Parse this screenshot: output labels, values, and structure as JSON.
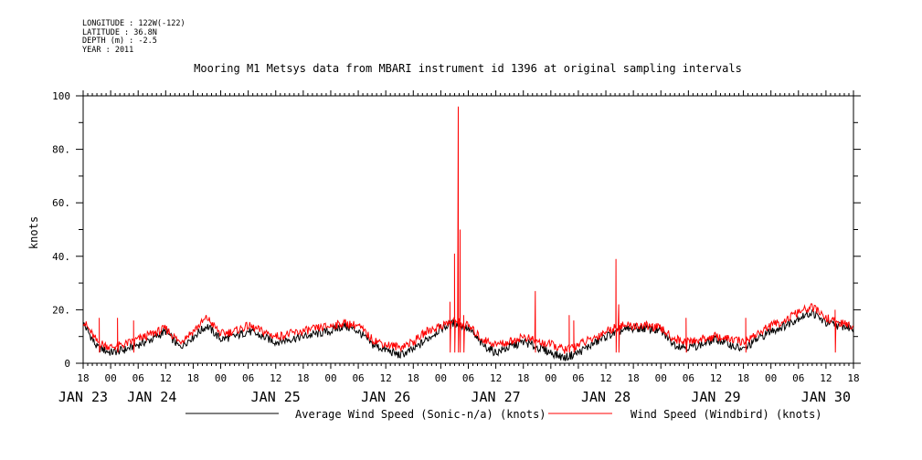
{
  "header": {
    "longitude": "LONGITUDE : 122W(-122)",
    "latitude": "LATITUDE : 36.8N",
    "depth": "DEPTH (m) : -2.5",
    "year": "YEAR : 2011"
  },
  "chart_data": {
    "type": "line",
    "title": "Mooring M1 Metsys data from MBARI instrument id 1396 at original sampling intervals",
    "ylabel": "knots",
    "xlabel": "",
    "ylim": [
      0,
      100
    ],
    "xlim_hours": [
      0,
      168
    ],
    "y_ticks": [
      "0",
      "20.",
      "40.",
      "60.",
      "80.",
      "100"
    ],
    "x_hour_ticks": [
      "18",
      "00",
      "06",
      "12",
      "18",
      "00",
      "06",
      "12",
      "18",
      "00",
      "06",
      "12",
      "18",
      "00",
      "06",
      "12",
      "18",
      "00",
      "06",
      "12",
      "18",
      "00",
      "06",
      "12",
      "18",
      "00",
      "06",
      "12",
      "18"
    ],
    "x_day_labels": [
      {
        "label": "JAN 23",
        "hour": 0
      },
      {
        "label": "JAN 24",
        "hour": 15
      },
      {
        "label": "JAN 25",
        "hour": 42
      },
      {
        "label": "JAN 26",
        "hour": 66
      },
      {
        "label": "JAN 27",
        "hour": 90
      },
      {
        "label": "JAN 28",
        "hour": 114
      },
      {
        "label": "JAN 29",
        "hour": 138
      },
      {
        "label": "JAN 30",
        "hour": 162
      }
    ],
    "grid": false,
    "legend_position": "bottom",
    "series": [
      {
        "name": "Average Wind Speed (Sonic-n/a) (knots)",
        "color": "#000000",
        "x": [
          0,
          3,
          6,
          9,
          12,
          15,
          18,
          21,
          24,
          27,
          30,
          33,
          36,
          39,
          42,
          45,
          48,
          51,
          54,
          57,
          60,
          63,
          66,
          69,
          72,
          75,
          78,
          81,
          84,
          87,
          90,
          93,
          96,
          99,
          102,
          105,
          108,
          111,
          114,
          117,
          120,
          123,
          126,
          129,
          132,
          135,
          138,
          141,
          144,
          147,
          150,
          153,
          156,
          159,
          162,
          165,
          168
        ],
        "y": [
          15,
          6,
          4,
          5,
          7,
          9,
          12,
          6,
          10,
          14,
          9,
          10,
          12,
          10,
          8,
          9,
          10,
          11,
          12,
          14,
          12,
          7,
          5,
          3,
          5,
          9,
          13,
          15,
          13,
          7,
          4,
          6,
          8,
          6,
          4,
          2,
          4,
          7,
          10,
          12,
          13,
          13,
          12,
          7,
          6,
          7,
          9,
          7,
          5,
          9,
          12,
          14,
          17,
          19,
          15,
          14,
          13
        ]
      },
      {
        "name": "Wind Speed (Windbird) (knots)",
        "color": "#ff0000",
        "x": [
          0,
          3,
          6,
          9,
          12,
          15,
          18,
          21,
          24,
          27,
          30,
          33,
          36,
          39,
          42,
          45,
          48,
          51,
          54,
          57,
          60,
          63,
          66,
          69,
          72,
          75,
          78,
          81,
          84,
          87,
          90,
          93,
          96,
          99,
          102,
          105,
          108,
          111,
          114,
          117,
          120,
          123,
          126,
          129,
          132,
          135,
          138,
          141,
          144,
          147,
          150,
          153,
          156,
          159,
          162,
          165,
          168
        ],
        "y": [
          16,
          8,
          6,
          7,
          9,
          11,
          13,
          8,
          12,
          17,
          11,
          12,
          14,
          12,
          10,
          11,
          12,
          13,
          14,
          15,
          14,
          9,
          7,
          6,
          8,
          12,
          14,
          16,
          14,
          9,
          7,
          8,
          10,
          8,
          7,
          5,
          7,
          9,
          12,
          14,
          14,
          14,
          13,
          9,
          8,
          9,
          10,
          9,
          8,
          11,
          14,
          16,
          19,
          21,
          17,
          15,
          14
        ],
        "spikes": [
          {
            "x": 3.5,
            "y": 17
          },
          {
            "x": 7.5,
            "y": 17
          },
          {
            "x": 11,
            "y": 16
          },
          {
            "x": 80,
            "y": 23
          },
          {
            "x": 81,
            "y": 41
          },
          {
            "x": 81.8,
            "y": 96
          },
          {
            "x": 82.2,
            "y": 50
          },
          {
            "x": 83,
            "y": 18
          },
          {
            "x": 98.6,
            "y": 27
          },
          {
            "x": 106,
            "y": 18
          },
          {
            "x": 107,
            "y": 16
          },
          {
            "x": 116.2,
            "y": 39
          },
          {
            "x": 116.8,
            "y": 22
          },
          {
            "x": 131.5,
            "y": 17
          },
          {
            "x": 144.5,
            "y": 17
          },
          {
            "x": 164,
            "y": 20
          }
        ]
      }
    ]
  }
}
